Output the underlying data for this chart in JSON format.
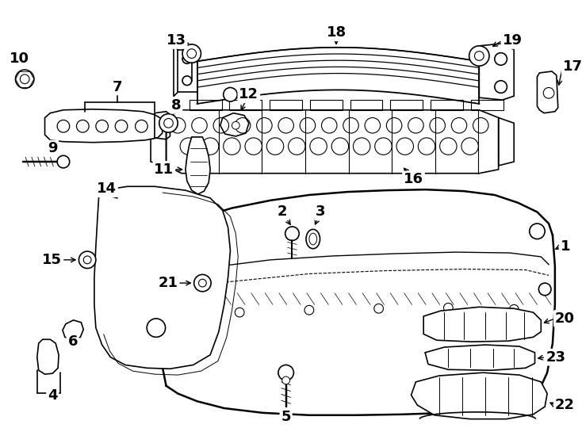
{
  "bg": "#ffffff",
  "lc": "#000000",
  "lw": 1.2,
  "fw": 7.34,
  "fh": 5.4,
  "dpi": 100
}
